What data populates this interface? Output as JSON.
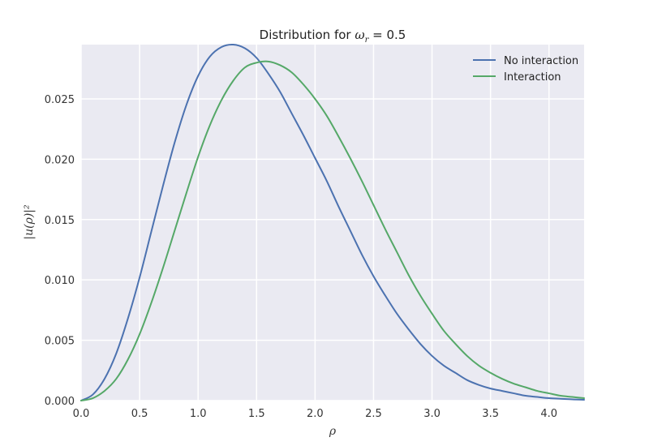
{
  "chart_data": {
    "type": "line",
    "title_prefix": "Distribution for ",
    "title_symbol": "ω",
    "title_subscript": "r",
    "title_suffix": " = 0.5",
    "xlabel": "ρ",
    "ylabel": "|u(ρ)|²",
    "xlim": [
      0.0,
      4.3
    ],
    "ylim": [
      0.0,
      0.0295
    ],
    "xticks": [
      0.0,
      0.5,
      1.0,
      1.5,
      2.0,
      2.5,
      3.0,
      3.5,
      4.0
    ],
    "xtick_labels": [
      "0.0",
      "0.5",
      "1.0",
      "1.5",
      "2.0",
      "2.5",
      "3.0",
      "3.5",
      "4.0"
    ],
    "yticks": [
      0.0,
      0.005,
      0.01,
      0.015,
      0.02,
      0.025
    ],
    "ytick_labels": [
      "0.000",
      "0.005",
      "0.010",
      "0.015",
      "0.020",
      "0.025"
    ],
    "grid": true,
    "legend_position": "top-right",
    "x": [
      0.0,
      0.1,
      0.2,
      0.3,
      0.4,
      0.5,
      0.6,
      0.7,
      0.8,
      0.9,
      1.0,
      1.1,
      1.2,
      1.3,
      1.4,
      1.5,
      1.6,
      1.7,
      1.8,
      1.9,
      2.0,
      2.1,
      2.2,
      2.3,
      2.4,
      2.5,
      2.6,
      2.7,
      2.8,
      2.9,
      3.0,
      3.1,
      3.2,
      3.3,
      3.4,
      3.5,
      3.6,
      3.7,
      3.8,
      3.9,
      4.0,
      4.1,
      4.2,
      4.3
    ],
    "series": [
      {
        "name": "No interaction",
        "color": "#4c72b0",
        "values": [
          0.0,
          0.0005,
          0.0018,
          0.0039,
          0.0068,
          0.0102,
          0.014,
          0.0178,
          0.0214,
          0.0245,
          0.0269,
          0.0285,
          0.0293,
          0.0295,
          0.0292,
          0.0284,
          0.0271,
          0.0256,
          0.0238,
          0.022,
          0.0201,
          0.0182,
          0.0161,
          0.0141,
          0.0121,
          0.0103,
          0.0087,
          0.0072,
          0.0059,
          0.0047,
          0.0037,
          0.0029,
          0.0023,
          0.0017,
          0.0013,
          0.001,
          0.0008,
          0.0006,
          0.0004,
          0.0003,
          0.0002,
          0.00015,
          0.0001,
          7e-05
        ]
      },
      {
        "name": "Interaction",
        "color": "#55a868",
        "values": [
          0.0,
          0.0002,
          0.0008,
          0.0018,
          0.0034,
          0.0055,
          0.0081,
          0.011,
          0.0141,
          0.0172,
          0.0202,
          0.0228,
          0.0249,
          0.0265,
          0.0276,
          0.028,
          0.0281,
          0.0278,
          0.0272,
          0.0262,
          0.025,
          0.0236,
          0.0219,
          0.0201,
          0.0182,
          0.0162,
          0.0142,
          0.0123,
          0.0104,
          0.0087,
          0.0072,
          0.0058,
          0.0047,
          0.0037,
          0.0029,
          0.0023,
          0.0018,
          0.0014,
          0.0011,
          0.0008,
          0.0006,
          0.0004,
          0.0003,
          0.0002
        ]
      }
    ]
  }
}
